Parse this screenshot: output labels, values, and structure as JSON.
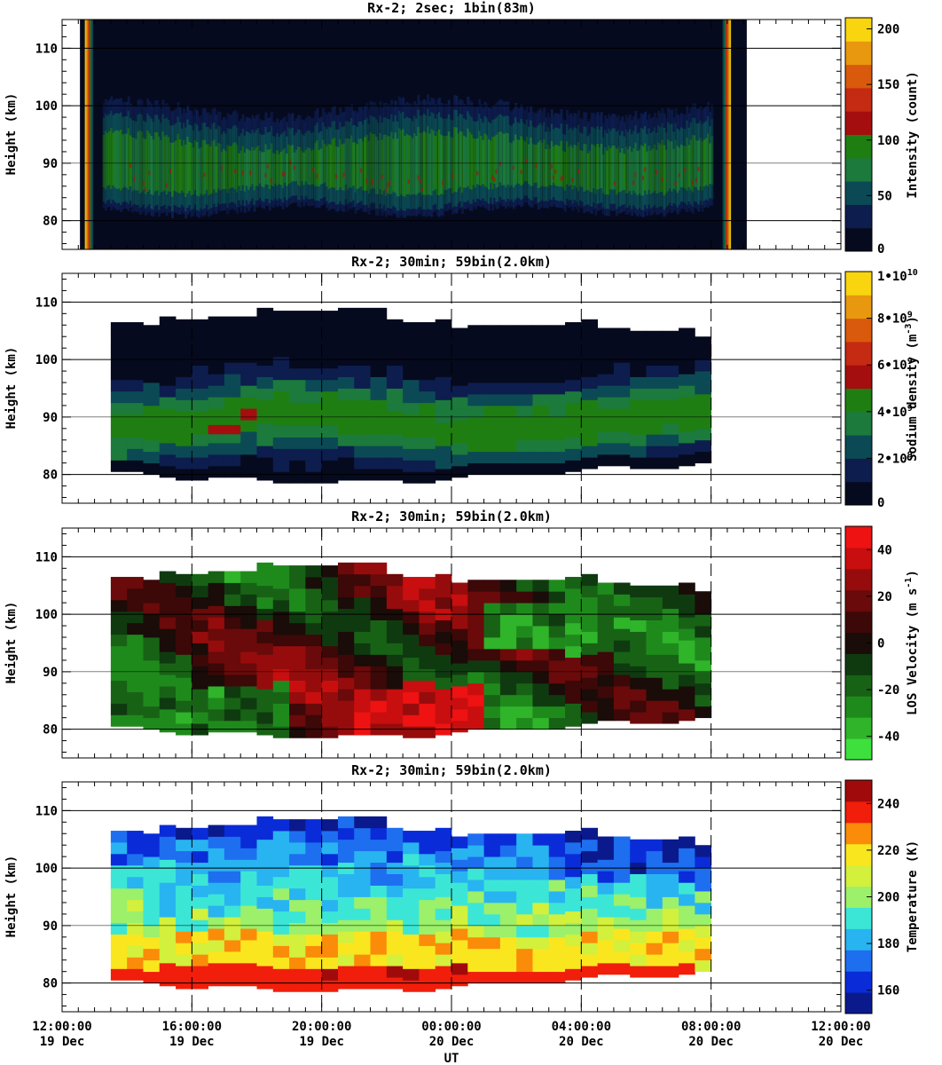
{
  "x_axis": {
    "label": "UT",
    "ticks": [
      {
        "time": "12:00:00",
        "date": "19 Dec",
        "hours": 12
      },
      {
        "time": "16:00:00",
        "date": "19 Dec",
        "hours": 16
      },
      {
        "time": "20:00:00",
        "date": "19 Dec",
        "hours": 20
      },
      {
        "time": "00:00:00",
        "date": "20 Dec",
        "hours": 24
      },
      {
        "time": "04:00:00",
        "date": "20 Dec",
        "hours": 28
      },
      {
        "time": "08:00:00",
        "date": "20 Dec",
        "hours": 32
      },
      {
        "time": "12:00:00",
        "date": "20 Dec",
        "hours": 36
      }
    ]
  },
  "chart_data": [
    {
      "type": "heatmap",
      "title": "Rx-2;  2sec; 1bin(83m)",
      "ylabel": "Height (km)",
      "ylim": [
        75,
        115
      ],
      "xlim_hours": [
        12,
        36
      ],
      "yticks": [
        80,
        90,
        100,
        110
      ],
      "grid": "horizontal",
      "colorbar": {
        "label": "Intensity (count)",
        "range": [
          0,
          210
        ],
        "ticks": [
          "0",
          "50",
          "100",
          "150",
          "200"
        ],
        "tick_values": [
          0,
          50,
          100,
          150,
          200
        ],
        "colors": [
          "#060a1e",
          "#0d1d4e",
          "#0b4a54",
          "#1b7a3c",
          "#1f7e12",
          "#a50e0e",
          "#c52a12",
          "#d95a0c",
          "#e8980e",
          "#f8d50e"
        ]
      },
      "data_extent_hours": [
        12.7,
        32.6
      ],
      "layer": {
        "bottom_km": 83,
        "peak_km": 88,
        "top_km": 97
      }
    },
    {
      "type": "heatmap",
      "title": "Rx-2; 30min; 59bin(2.0km)",
      "ylabel": "Height (km)",
      "ylim": [
        75,
        115
      ],
      "xlim_hours": [
        12,
        36
      ],
      "yticks": [
        80,
        90,
        100,
        110
      ],
      "colorbar": {
        "label": "Sodium density",
        "unit_base": "(m",
        "unit_exp": "-3",
        "range": [
          0,
          10
        ],
        "ticks": [
          {
            "value": 0,
            "text": "0"
          },
          {
            "value": 2,
            "mant": "2•10",
            "exp": "9"
          },
          {
            "value": 4,
            "mant": "4•10",
            "exp": "9"
          },
          {
            "value": 6,
            "mant": "6•10",
            "exp": "9"
          },
          {
            "value": 8,
            "mant": "8•10",
            "exp": "9"
          },
          {
            "value": 10,
            "mant": "1•10",
            "exp": "10"
          }
        ],
        "colors": [
          "#060a1e",
          "#0d1d4e",
          "#0b4a54",
          "#1b7a3c",
          "#1f7e12",
          "#a50e0e",
          "#c52a12",
          "#d95a0c",
          "#e8980e",
          "#f8d50e"
        ]
      },
      "data_extent_hours": [
        16.0,
        32.0
      ],
      "units_note": "density in units of 1e9 m^-3"
    },
    {
      "type": "heatmap",
      "title": "Rx-2; 30min; 59bin(2.0km)",
      "ylabel": "Height (km)",
      "ylim": [
        75,
        115
      ],
      "xlim_hours": [
        12,
        36
      ],
      "yticks": [
        80,
        90,
        100,
        110
      ],
      "colorbar": {
        "label": "LOS Velocity",
        "unit_base": "(m s",
        "unit_exp": "-1",
        "range": [
          -50,
          50
        ],
        "ticks": [
          {
            "value": -40,
            "text": "-40"
          },
          {
            "value": -20,
            "text": "-20"
          },
          {
            "value": 0,
            "text": "0"
          },
          {
            "value": 20,
            "text": "20"
          },
          {
            "value": 40,
            "text": "40"
          }
        ],
        "colors": [
          "#3ee03e",
          "#2fb42a",
          "#1f8a1c",
          "#186216",
          "#0f3a10",
          "#1a0c08",
          "#3c0808",
          "#6a0a0a",
          "#960c0c",
          "#c80e0e",
          "#ee1212"
        ]
      },
      "data_extent_hours": [
        16.0,
        32.0
      ]
    },
    {
      "type": "heatmap",
      "title": "Rx-2; 30min; 59bin(2.0km)",
      "ylabel": "Height (km)",
      "ylim": [
        75,
        115
      ],
      "xlim_hours": [
        12,
        36
      ],
      "yticks": [
        80,
        90,
        100,
        110
      ],
      "colorbar": {
        "label": "Temperature (K)",
        "range": [
          150,
          250
        ],
        "ticks": [
          {
            "value": 160,
            "text": "160"
          },
          {
            "value": 180,
            "text": "180"
          },
          {
            "value": 200,
            "text": "200"
          },
          {
            "value": 220,
            "text": "220"
          },
          {
            "value": 240,
            "text": "240"
          }
        ],
        "colors": [
          "#0a1a8c",
          "#0a2cd8",
          "#1e6ef0",
          "#28b4f0",
          "#3ce6d6",
          "#9cf06a",
          "#d2f03c",
          "#fae61e",
          "#fa8c0a",
          "#f01e0a",
          "#a00a0a"
        ]
      },
      "data_extent_hours": [
        16.0,
        32.0
      ]
    }
  ]
}
